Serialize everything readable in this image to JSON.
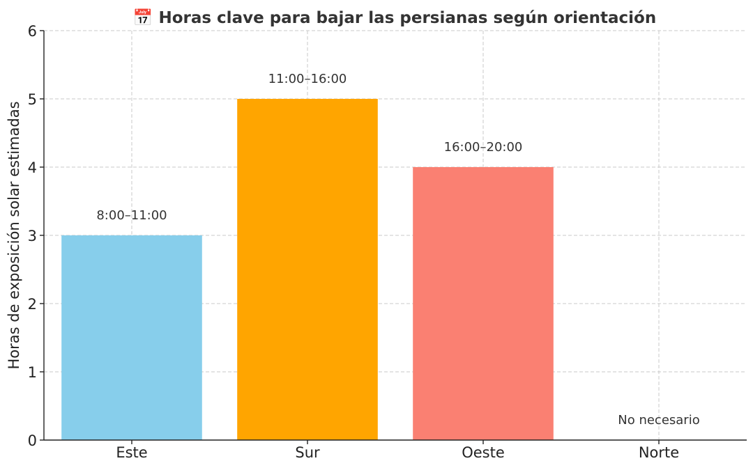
{
  "chart_data": {
    "type": "bar",
    "title": "📅 Horas clave para bajar las persianas según orientación",
    "xlabel": "",
    "ylabel": "Horas de exposición solar estimadas",
    "categories": [
      "Este",
      "Sur",
      "Oeste",
      "Norte"
    ],
    "values": [
      3,
      5,
      4,
      0
    ],
    "data_labels": [
      "8:00–11:00",
      "11:00–16:00",
      "16:00–20:00",
      "No necesario"
    ],
    "colors": [
      "#87CEEB",
      "#FFA500",
      "#FA8072",
      "#D3D3D3"
    ],
    "ylim": [
      0,
      6
    ],
    "yticks": [
      "0",
      "1",
      "2",
      "3",
      "4",
      "5",
      "6"
    ],
    "grid": true
  }
}
